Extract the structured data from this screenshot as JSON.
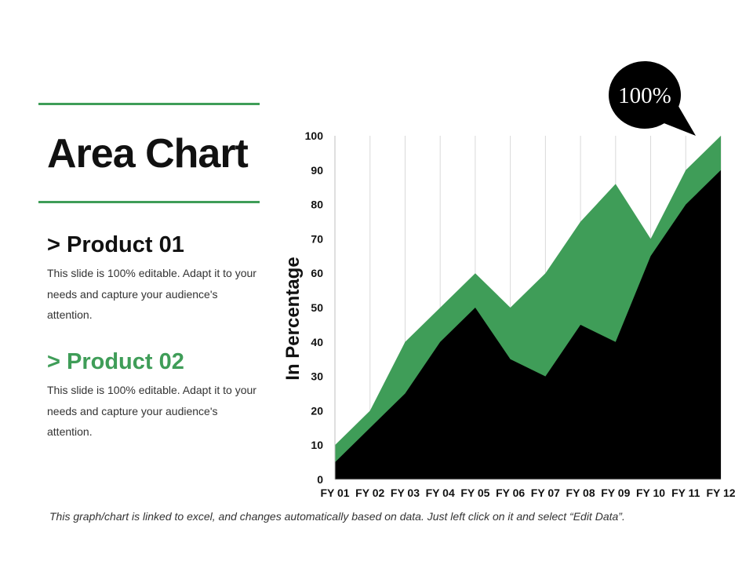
{
  "slide": {
    "title": "Area Chart",
    "footnote": "This graph/chart is linked to excel, and changes automatically based on data. Just left click on it and select “Edit Data”."
  },
  "products": [
    {
      "heading": "> Product 01",
      "text": "This slide is 100% editable. Adapt it to your needs and capture your audience's attention."
    },
    {
      "heading": "> Product 02",
      "text": "This slide is 100% editable. Adapt it to your needs and capture your audience's attention."
    }
  ],
  "colors": {
    "accent_green": "#3f9d58",
    "dark_series": "#000000",
    "gridline": "#d9d9d9"
  },
  "chart_data": {
    "type": "area",
    "categories": [
      "FY 01",
      "FY 02",
      "FY 03",
      "FY 04",
      "FY 05",
      "FY 06",
      "FY 07",
      "FY 08",
      "FY 09",
      "FY 10",
      "FY 11",
      "FY 12"
    ],
    "series": [
      {
        "values": [
          10,
          20,
          40,
          50,
          60,
          50,
          60,
          75,
          86,
          70,
          90,
          100
        ],
        "color": "#3f9d58"
      },
      {
        "values": [
          5,
          15,
          25,
          40,
          50,
          35,
          30,
          45,
          40,
          65,
          80,
          90
        ],
        "color": "#000000"
      }
    ],
    "ylabel": "In Percentage",
    "xlabel": "",
    "ylim": [
      0,
      100
    ],
    "yticks": [
      0,
      10,
      20,
      30,
      40,
      50,
      60,
      70,
      80,
      90,
      100
    ],
    "grid": "vertical",
    "callout": "100%"
  }
}
